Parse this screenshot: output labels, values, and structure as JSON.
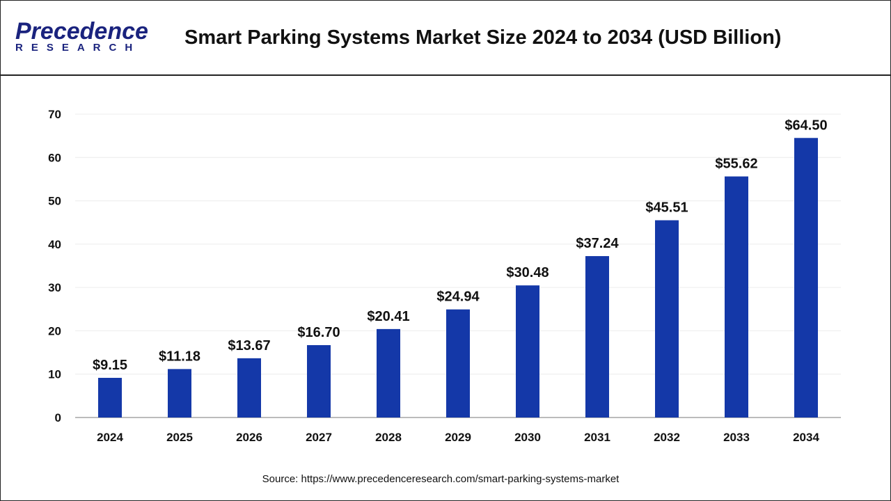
{
  "header": {
    "logo_main": "Precedence",
    "logo_sub": "RESEARCH",
    "title": "Smart Parking Systems Market Size 2024 to 2034 (USD Billion)"
  },
  "source": "Source: https://www.precedenceresearch.com/smart-parking-systems-market",
  "chart_data": {
    "type": "bar",
    "title": "Smart Parking Systems Market Size 2024 to 2034 (USD Billion)",
    "categories": [
      "2024",
      "2025",
      "2026",
      "2027",
      "2028",
      "2029",
      "2030",
      "2031",
      "2032",
      "2033",
      "2034"
    ],
    "values": [
      9.15,
      11.18,
      13.67,
      16.7,
      20.41,
      24.94,
      30.48,
      37.24,
      45.51,
      55.62,
      64.5
    ],
    "data_labels": [
      "$9.15",
      "$11.18",
      "$13.67",
      "$16.70",
      "$20.41",
      "$24.94",
      "$30.48",
      "$37.24",
      "$45.51",
      "$55.62",
      "$64.50"
    ],
    "ylim": [
      0,
      70
    ],
    "yticks": [
      0,
      10,
      20,
      30,
      40,
      50,
      60,
      70
    ],
    "grid": true,
    "bar_color": "#1438a8"
  }
}
